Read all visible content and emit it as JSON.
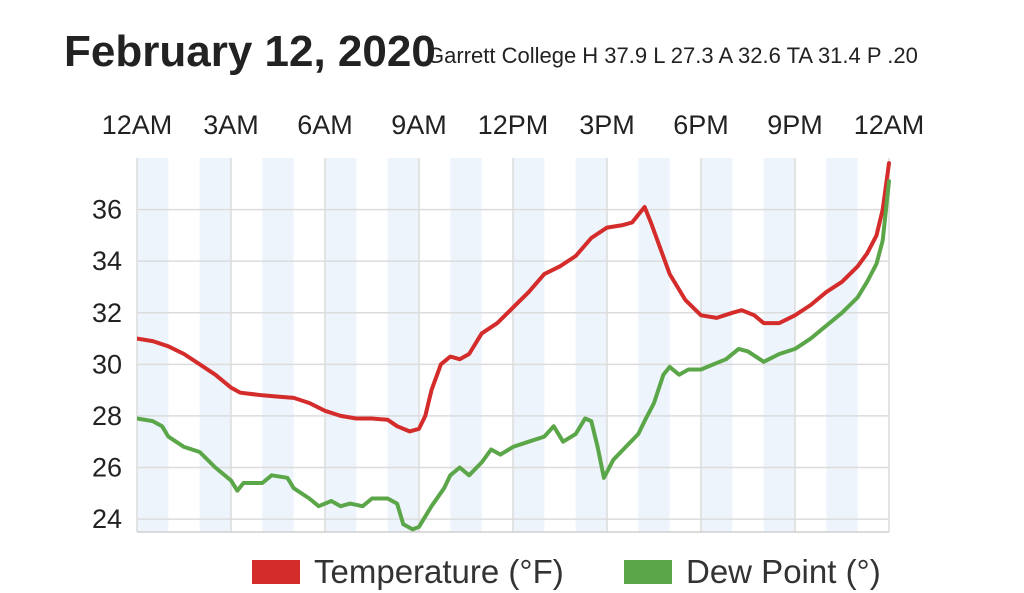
{
  "chart_data": {
    "type": "line",
    "title": "February 12, 2020",
    "subtitle": "Garrett College H 37.9 L 27.3 A 32.6 TA 31.4 P .20",
    "x_tick_labels": [
      "12AM",
      "3AM",
      "6AM",
      "9AM",
      "12PM",
      "3PM",
      "6PM",
      "9PM",
      "12AM"
    ],
    "xlim": [
      0,
      24
    ],
    "ylim": [
      23.5,
      38
    ],
    "y_ticks": [
      24,
      26,
      28,
      30,
      32,
      34,
      36
    ],
    "grid": true,
    "legend_position": "bottom",
    "series": [
      {
        "name": "Temperature (°F)",
        "color": "#d42b2b",
        "points": [
          [
            0,
            31.0
          ],
          [
            0.5,
            30.9
          ],
          [
            1.0,
            30.7
          ],
          [
            1.5,
            30.4
          ],
          [
            2.0,
            30.0
          ],
          [
            2.5,
            29.6
          ],
          [
            3.0,
            29.1
          ],
          [
            3.3,
            28.9
          ],
          [
            4.0,
            28.8
          ],
          [
            4.5,
            28.75
          ],
          [
            5.0,
            28.7
          ],
          [
            5.5,
            28.5
          ],
          [
            6.0,
            28.2
          ],
          [
            6.5,
            28.0
          ],
          [
            7.0,
            27.9
          ],
          [
            7.5,
            27.9
          ],
          [
            8.0,
            27.85
          ],
          [
            8.3,
            27.6
          ],
          [
            8.7,
            27.4
          ],
          [
            9.0,
            27.5
          ],
          [
            9.2,
            28.0
          ],
          [
            9.4,
            29.0
          ],
          [
            9.7,
            30.0
          ],
          [
            10.0,
            30.3
          ],
          [
            10.3,
            30.2
          ],
          [
            10.6,
            30.4
          ],
          [
            11.0,
            31.2
          ],
          [
            11.5,
            31.6
          ],
          [
            12.0,
            32.2
          ],
          [
            12.5,
            32.8
          ],
          [
            13.0,
            33.5
          ],
          [
            13.5,
            33.8
          ],
          [
            14.0,
            34.2
          ],
          [
            14.5,
            34.9
          ],
          [
            15.0,
            35.3
          ],
          [
            15.5,
            35.4
          ],
          [
            15.8,
            35.5
          ],
          [
            16.0,
            35.8
          ],
          [
            16.2,
            36.1
          ],
          [
            16.4,
            35.5
          ],
          [
            16.7,
            34.5
          ],
          [
            17.0,
            33.5
          ],
          [
            17.5,
            32.5
          ],
          [
            18.0,
            31.9
          ],
          [
            18.5,
            31.8
          ],
          [
            19.0,
            32.0
          ],
          [
            19.3,
            32.1
          ],
          [
            19.7,
            31.9
          ],
          [
            20.0,
            31.6
          ],
          [
            20.5,
            31.6
          ],
          [
            21.0,
            31.9
          ],
          [
            21.5,
            32.3
          ],
          [
            22.0,
            32.8
          ],
          [
            22.5,
            33.2
          ],
          [
            23.0,
            33.8
          ],
          [
            23.3,
            34.3
          ],
          [
            23.6,
            35.0
          ],
          [
            23.8,
            36.0
          ],
          [
            24.0,
            37.8
          ]
        ]
      },
      {
        "name": "Dew Point (°)",
        "color": "#5ca64a",
        "points": [
          [
            0,
            27.9
          ],
          [
            0.5,
            27.8
          ],
          [
            0.8,
            27.6
          ],
          [
            1.0,
            27.2
          ],
          [
            1.5,
            26.8
          ],
          [
            2.0,
            26.6
          ],
          [
            2.5,
            26.0
          ],
          [
            3.0,
            25.5
          ],
          [
            3.2,
            25.1
          ],
          [
            3.4,
            25.4
          ],
          [
            4.0,
            25.4
          ],
          [
            4.3,
            25.7
          ],
          [
            4.8,
            25.6
          ],
          [
            5.0,
            25.2
          ],
          [
            5.5,
            24.8
          ],
          [
            5.8,
            24.5
          ],
          [
            6.2,
            24.7
          ],
          [
            6.5,
            24.5
          ],
          [
            6.8,
            24.6
          ],
          [
            7.2,
            24.5
          ],
          [
            7.5,
            24.8
          ],
          [
            8.0,
            24.8
          ],
          [
            8.3,
            24.6
          ],
          [
            8.5,
            23.8
          ],
          [
            8.8,
            23.6
          ],
          [
            9.0,
            23.7
          ],
          [
            9.4,
            24.5
          ],
          [
            9.8,
            25.2
          ],
          [
            10.0,
            25.7
          ],
          [
            10.3,
            26.0
          ],
          [
            10.6,
            25.7
          ],
          [
            11.0,
            26.2
          ],
          [
            11.3,
            26.7
          ],
          [
            11.6,
            26.5
          ],
          [
            12.0,
            26.8
          ],
          [
            12.5,
            27.0
          ],
          [
            13.0,
            27.2
          ],
          [
            13.3,
            27.6
          ],
          [
            13.6,
            27.0
          ],
          [
            14.0,
            27.3
          ],
          [
            14.3,
            27.9
          ],
          [
            14.5,
            27.8
          ],
          [
            14.7,
            26.8
          ],
          [
            14.9,
            25.6
          ],
          [
            15.2,
            26.3
          ],
          [
            15.6,
            26.8
          ],
          [
            16.0,
            27.3
          ],
          [
            16.2,
            27.8
          ],
          [
            16.5,
            28.5
          ],
          [
            16.8,
            29.6
          ],
          [
            17.0,
            29.9
          ],
          [
            17.3,
            29.6
          ],
          [
            17.6,
            29.8
          ],
          [
            18.0,
            29.8
          ],
          [
            18.4,
            30.0
          ],
          [
            18.8,
            30.2
          ],
          [
            19.2,
            30.6
          ],
          [
            19.5,
            30.5
          ],
          [
            20.0,
            30.1
          ],
          [
            20.5,
            30.4
          ],
          [
            21.0,
            30.6
          ],
          [
            21.5,
            31.0
          ],
          [
            22.0,
            31.5
          ],
          [
            22.5,
            32.0
          ],
          [
            23.0,
            32.6
          ],
          [
            23.3,
            33.2
          ],
          [
            23.6,
            33.9
          ],
          [
            23.8,
            34.8
          ],
          [
            24.0,
            37.1
          ]
        ]
      }
    ]
  }
}
